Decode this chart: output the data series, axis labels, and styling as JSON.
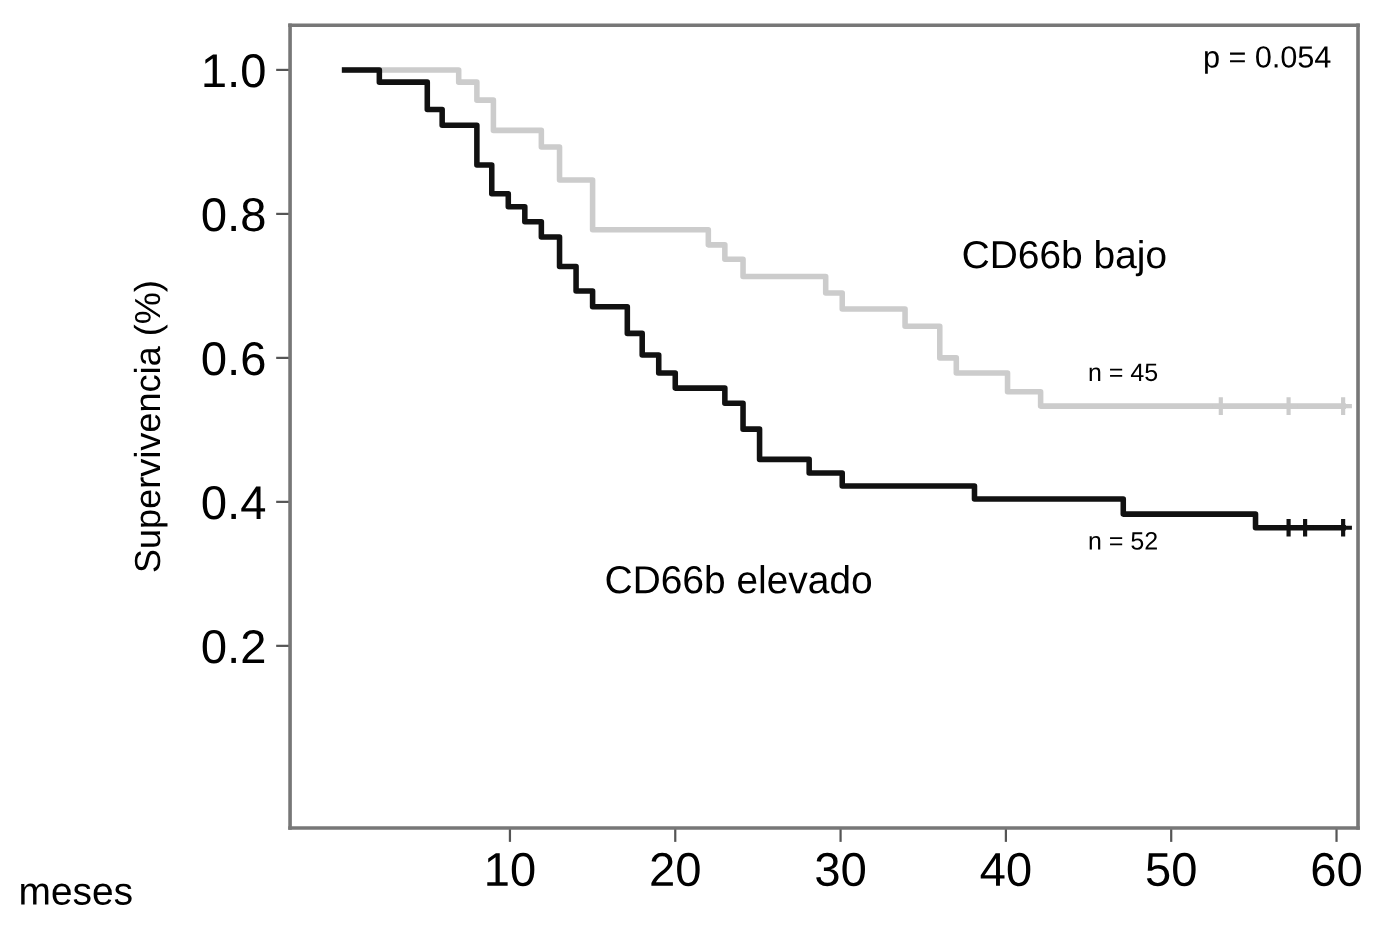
{
  "chart_data": {
    "type": "step",
    "xlabel": "meses",
    "ylabel": "Supervivencia (%)",
    "xlim": [
      -3.3,
      61.3
    ],
    "ylim": [
      -0.053,
      1.062
    ],
    "xticks": [
      10,
      20,
      30,
      40,
      50,
      60
    ],
    "yticks": [
      {
        "value": 0.2,
        "label": "0.2"
      },
      {
        "value": 0.4,
        "label": "0.4"
      },
      {
        "value": 0.6,
        "label": "0.6"
      },
      {
        "value": 0.8,
        "label": "0.8"
      },
      {
        "value": 1.0,
        "label": "1.0"
      }
    ],
    "grid": false,
    "legend": false,
    "series": [
      {
        "color": "#cccccc",
        "x": [
          0,
          6.9,
          8.0,
          9.0,
          11.9,
          13.0,
          15.0,
          22.0,
          23.0,
          24.1,
          29.1,
          30.1,
          33.9,
          36.0,
          37.0,
          40.1,
          42.1,
          60.4
        ],
        "values": [
          1.0,
          0.983,
          0.958,
          0.916,
          0.893,
          0.847,
          0.778,
          0.757,
          0.737,
          0.713,
          0.69,
          0.668,
          0.644,
          0.6,
          0.579,
          0.553,
          0.533,
          0.533
        ]
      },
      {
        "color": "#111111",
        "x": [
          0,
          2.1,
          5.0,
          5.9,
          8.0,
          8.9,
          9.9,
          10.9,
          11.9,
          13.0,
          14.0,
          15.0,
          17.1,
          18.0,
          19.0,
          20.0,
          23.0,
          24.1,
          25.1,
          28.1,
          30.1,
          38.1,
          47.1,
          55.1,
          60.4
        ],
        "values": [
          1.0,
          0.983,
          0.945,
          0.923,
          0.868,
          0.828,
          0.81,
          0.789,
          0.768,
          0.727,
          0.693,
          0.671,
          0.634,
          0.604,
          0.579,
          0.558,
          0.537,
          0.501,
          0.459,
          0.44,
          0.422,
          0.404,
          0.383,
          0.364,
          0.364
        ]
      },
      {
        "type": "scatter",
        "marker": "cross",
        "color": "#cccccc",
        "x": [
          53.0,
          57.1,
          60.4
        ],
        "values": [
          0.533,
          0.533,
          0.533
        ]
      },
      {
        "type": "scatter",
        "marker": "cross",
        "color": "#111111",
        "x": [
          57.1,
          58.1,
          60.4
        ],
        "values": [
          0.364,
          0.364,
          0.364
        ]
      }
    ],
    "annotations": [
      "p = 0.054",
      "CD66b bajo",
      "n = 45",
      "n = 52",
      "CD66b elevado"
    ]
  }
}
